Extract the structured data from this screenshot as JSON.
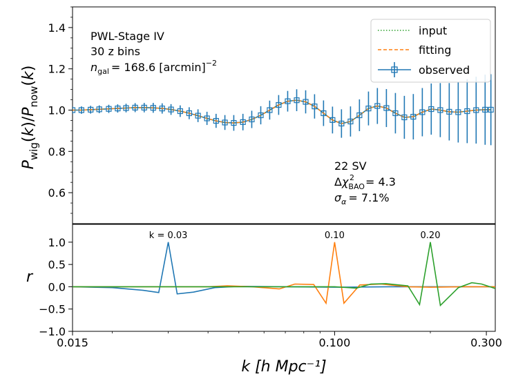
{
  "chart_data": [
    {
      "type": "line",
      "panel": "top",
      "xscale": "log",
      "xlim": [
        0.015,
        0.32
      ],
      "ylim": [
        0.45,
        1.5
      ],
      "ylabel": "P_wig(k)/P_now(k)",
      "yticks": [
        0.6,
        0.8,
        1.0,
        1.2,
        1.4
      ],
      "ytick_labels": [
        "0.6",
        "0.8",
        "1.0",
        "1.2",
        "1.4"
      ],
      "annotation_left": {
        "survey": "PWL-Stage IV",
        "zbins": "30 z bins",
        "ngal_value": "= 168.6 [arcmin]",
        "ngal_exp": "−2"
      },
      "annotation_right": {
        "sv": "22 SV",
        "chi2_value": "= 4.3",
        "sigma_value": "= 7.1%"
      },
      "legend": {
        "placement": "top-right",
        "entries": [
          {
            "label": "input",
            "style": "dotted",
            "color": "#2ca02c"
          },
          {
            "label": "fitting",
            "style": "dashed",
            "color": "#ff7f0e"
          },
          {
            "label": "observed",
            "style": "errorbar-square",
            "color": "#1f77b4"
          }
        ]
      },
      "series": [
        {
          "name": "observed",
          "color": "#1f77b4",
          "k": [
            0.015,
            0.016,
            0.0171,
            0.0182,
            0.0195,
            0.0208,
            0.0221,
            0.0236,
            0.0252,
            0.0269,
            0.0287,
            0.0306,
            0.0327,
            0.0349,
            0.0372,
            0.0397,
            0.0424,
            0.0452,
            0.0482,
            0.0515,
            0.0549,
            0.0586,
            0.0625,
            0.0667,
            0.0712,
            0.076,
            0.0811,
            0.0865,
            0.0923,
            0.0985,
            0.1051,
            0.1122,
            0.1197,
            0.1278,
            0.1363,
            0.1455,
            0.1553,
            0.1657,
            0.1768,
            0.1887,
            0.2013,
            0.2149,
            0.2293,
            0.2447,
            0.2611,
            0.2786,
            0.2973,
            0.31
          ],
          "values": [
            1.0,
            1.0,
            1.002,
            1.004,
            1.006,
            1.008,
            1.01,
            1.012,
            1.012,
            1.011,
            1.008,
            1.003,
            0.995,
            0.985,
            0.973,
            0.96,
            0.948,
            0.94,
            0.938,
            0.942,
            0.955,
            0.975,
            1.0,
            1.025,
            1.043,
            1.048,
            1.04,
            1.018,
            0.985,
            0.952,
            0.935,
            0.945,
            0.975,
            1.008,
            1.02,
            1.01,
            0.985,
            0.965,
            0.968,
            0.99,
            1.005,
            1.0,
            0.992,
            0.99,
            0.995,
            1.0,
            1.002,
            1.002
          ],
          "errors": [
            0.018,
            0.018,
            0.019,
            0.019,
            0.02,
            0.02,
            0.021,
            0.022,
            0.023,
            0.024,
            0.025,
            0.026,
            0.028,
            0.029,
            0.031,
            0.032,
            0.034,
            0.036,
            0.038,
            0.04,
            0.042,
            0.044,
            0.046,
            0.048,
            0.05,
            0.053,
            0.056,
            0.059,
            0.062,
            0.065,
            0.069,
            0.073,
            0.077,
            0.082,
            0.087,
            0.092,
            0.098,
            0.104,
            0.11,
            0.117,
            0.124,
            0.131,
            0.139,
            0.147,
            0.155,
            0.162,
            0.17,
            0.172
          ]
        },
        {
          "name": "fitting",
          "color": "#ff7f0e",
          "k": [
            0.015,
            0.016,
            0.0171,
            0.0182,
            0.0195,
            0.0208,
            0.0221,
            0.0236,
            0.0252,
            0.0269,
            0.0287,
            0.0306,
            0.0327,
            0.0349,
            0.0372,
            0.0397,
            0.0424,
            0.0452,
            0.0482,
            0.0515,
            0.0549,
            0.0586,
            0.0625,
            0.0667,
            0.0712,
            0.076,
            0.0811,
            0.0865,
            0.0923,
            0.0985,
            0.1051,
            0.1122,
            0.1197,
            0.1278,
            0.1363,
            0.1455,
            0.1553,
            0.1657,
            0.1768,
            0.1887,
            0.2013,
            0.2149,
            0.2293,
            0.2447,
            0.2611,
            0.2786,
            0.2973,
            0.31
          ],
          "values": [
            1.0,
            1.0,
            1.002,
            1.004,
            1.006,
            1.008,
            1.01,
            1.012,
            1.012,
            1.011,
            1.008,
            1.003,
            0.995,
            0.985,
            0.973,
            0.96,
            0.948,
            0.94,
            0.938,
            0.942,
            0.955,
            0.975,
            1.0,
            1.025,
            1.043,
            1.048,
            1.04,
            1.018,
            0.985,
            0.952,
            0.935,
            0.945,
            0.975,
            1.008,
            1.02,
            1.01,
            0.985,
            0.965,
            0.968,
            0.99,
            1.005,
            1.0,
            0.992,
            0.99,
            0.995,
            1.0,
            1.002,
            1.002
          ]
        },
        {
          "name": "input",
          "color": "#2ca02c",
          "k": [
            0.015,
            0.016,
            0.0171,
            0.0182,
            0.0195,
            0.0208,
            0.0221,
            0.0236,
            0.0252,
            0.0269,
            0.0287,
            0.0306,
            0.0327,
            0.0349,
            0.0372,
            0.0397,
            0.0424,
            0.0452,
            0.0482,
            0.0515,
            0.0549,
            0.0586,
            0.0625,
            0.0667,
            0.0712,
            0.076,
            0.0811,
            0.0865,
            0.0923,
            0.0985,
            0.1051,
            0.1122,
            0.1197,
            0.1278,
            0.1363,
            0.1455,
            0.1553,
            0.1657,
            0.1768,
            0.1887,
            0.2013,
            0.2149,
            0.2293,
            0.2447,
            0.2611,
            0.2786,
            0.2973,
            0.31
          ],
          "values": [
            1.0,
            1.0,
            1.002,
            1.004,
            1.006,
            1.008,
            1.01,
            1.012,
            1.012,
            1.011,
            1.008,
            1.003,
            0.995,
            0.985,
            0.973,
            0.96,
            0.948,
            0.94,
            0.938,
            0.942,
            0.955,
            0.975,
            1.0,
            1.025,
            1.043,
            1.048,
            1.04,
            1.018,
            0.985,
            0.952,
            0.935,
            0.945,
            0.975,
            1.008,
            1.02,
            1.01,
            0.985,
            0.965,
            0.968,
            0.99,
            1.005,
            1.0,
            0.992,
            0.99,
            0.995,
            1.0,
            1.002,
            1.002
          ]
        }
      ]
    },
    {
      "type": "line",
      "panel": "bottom",
      "xscale": "log",
      "xlim": [
        0.015,
        0.32
      ],
      "ylim": [
        -1.0,
        1.4
      ],
      "ylabel": "r",
      "xlabel": "k [h Mpc⁻¹]",
      "xticks": [
        0.015,
        0.1,
        0.3
      ],
      "xtick_labels": [
        "0.015",
        "0.100",
        "0.300"
      ],
      "yticks": [
        -1.0,
        -0.5,
        0.0,
        0.5,
        1.0
      ],
      "ytick_labels": [
        "−1.0",
        "−0.5",
        "0.0",
        "0.5",
        "1.0"
      ],
      "peak_labels": [
        {
          "k": 0.03,
          "text": "k = 0.03",
          "color": "#1f77b4"
        },
        {
          "k": 0.1,
          "text": "0.10",
          "color": "#ff7f0e"
        },
        {
          "k": 0.2,
          "text": "0.20",
          "color": "#2ca02c"
        }
      ],
      "series": [
        {
          "name": "r(k=0.03)",
          "color": "#1f77b4",
          "k": [
            0.015,
            0.02,
            0.025,
            0.028,
            0.03,
            0.032,
            0.036,
            0.042,
            0.05,
            0.07,
            0.1,
            0.15,
            0.2,
            0.32
          ],
          "values": [
            0.0,
            -0.02,
            -0.08,
            -0.13,
            1.0,
            -0.16,
            -0.12,
            -0.02,
            0.01,
            0.0,
            -0.01,
            0.0,
            0.0,
            0.0
          ]
        },
        {
          "name": "r(k=0.10)",
          "color": "#ff7f0e",
          "k": [
            0.015,
            0.04,
            0.046,
            0.055,
            0.067,
            0.075,
            0.086,
            0.094,
            0.1,
            0.107,
            0.12,
            0.14,
            0.17,
            0.2,
            0.25,
            0.32
          ],
          "values": [
            0.0,
            0.0,
            0.02,
            0.0,
            -0.05,
            0.06,
            0.05,
            -0.37,
            1.0,
            -0.37,
            0.04,
            0.06,
            0.0,
            -0.01,
            0.0,
            0.0
          ]
        },
        {
          "name": "r(k=0.20)",
          "color": "#2ca02c",
          "k": [
            0.015,
            0.08,
            0.1,
            0.117,
            0.13,
            0.145,
            0.17,
            0.185,
            0.2,
            0.215,
            0.245,
            0.27,
            0.29,
            0.32
          ],
          "values": [
            0.0,
            0.0,
            0.0,
            -0.03,
            0.06,
            0.07,
            0.02,
            -0.4,
            1.0,
            -0.42,
            -0.02,
            0.09,
            0.06,
            -0.04
          ]
        }
      ]
    }
  ]
}
